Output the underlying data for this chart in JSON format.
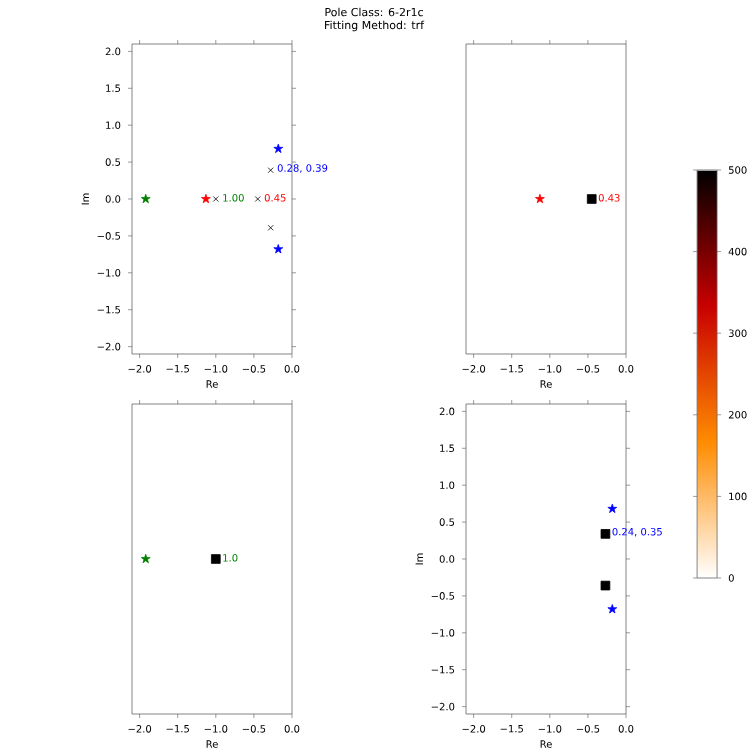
{
  "chart_data": [
    {
      "type": "scatter",
      "xlabel": "Re",
      "ylabel": "Im",
      "xlim": [
        -2.1,
        0
      ],
      "ylim": [
        -2.1,
        2.1
      ],
      "xticks": [
        {
          "value": -2,
          "label": "−2.0"
        },
        {
          "value": -1.5,
          "label": "−1.5"
        },
        {
          "value": -1,
          "label": "−1.0"
        },
        {
          "value": -0.5,
          "label": "−0.5"
        },
        {
          "value": 0,
          "label": "0.0"
        }
      ],
      "yticks": [
        {
          "value": -2,
          "label": "−2.0"
        },
        {
          "value": -1.5,
          "label": "−1.5"
        },
        {
          "value": -1,
          "label": "−1.0"
        },
        {
          "value": -0.5,
          "label": "−0.5"
        },
        {
          "value": 0,
          "label": "0.0"
        },
        {
          "value": 0.5,
          "label": "0.5"
        },
        {
          "value": 1,
          "label": "1.0"
        },
        {
          "value": 1.5,
          "label": "1.5"
        },
        {
          "value": 2,
          "label": "2.0"
        }
      ],
      "series": [
        {
          "x": [
            -1.92
          ],
          "values": [
            0
          ],
          "color": "#008000",
          "marker": "star"
        },
        {
          "x": [
            -1.13
          ],
          "values": [
            0
          ],
          "color": "#ff0000",
          "marker": "star"
        },
        {
          "x": [
            -0.18,
            -0.18
          ],
          "values": [
            0.68,
            -0.68
          ],
          "color": "#0000ff",
          "marker": "star"
        },
        {
          "x": [
            -1.0,
            -0.45,
            -0.28,
            -0.28
          ],
          "values": [
            0,
            0,
            0.39,
            -0.39
          ],
          "color": "#000000",
          "marker": "cross"
        }
      ],
      "annotations": [
        {
          "text": "1.00",
          "x": -1.0,
          "y": 0
        },
        {
          "text": "0.45",
          "x": -0.45,
          "y": 0
        },
        {
          "text": "0.28, 0.39",
          "x": -0.28,
          "y": 0.39
        }
      ]
    },
    {
      "type": "scatter",
      "title": "Pole Class: 6-2r1c",
      "subtitle": "Fitting Method: trf",
      "xlabel": "Re",
      "xlim": [
        -2.1,
        0
      ],
      "ylim": [
        -2.1,
        2.1
      ],
      "tick_labels": "x",
      "xticks": [
        {
          "value": -2,
          "label": "−2.0"
        },
        {
          "value": -1.5,
          "label": "−1.5"
        },
        {
          "value": -1,
          "label": "−1.0"
        },
        {
          "value": -0.5,
          "label": "−0.5"
        },
        {
          "value": 0,
          "label": "0.0"
        }
      ],
      "clim": [
        0,
        500
      ],
      "cticks": [
        0,
        100,
        200,
        300,
        400,
        500
      ],
      "series": [
        {
          "x": [
            -1.13
          ],
          "values": [
            0
          ],
          "color": "#ff0000",
          "marker": "star"
        },
        {
          "x": [
            -0.45
          ],
          "values": [
            0
          ],
          "cvalues": [
            500
          ],
          "marker": "square"
        }
      ],
      "annotations": [
        {
          "text": "0.43",
          "x": -0.45,
          "y": 0
        }
      ]
    },
    {
      "type": "scatter",
      "xlabel": "Re",
      "xlim": [
        -2.1,
        0
      ],
      "ylim": [
        -2.1,
        2.1
      ],
      "tick_labels": "x",
      "xticks": [
        {
          "value": -2,
          "label": "−2.0"
        },
        {
          "value": -1.5,
          "label": "−1.5"
        },
        {
          "value": -1,
          "label": "−1.0"
        },
        {
          "value": -0.5,
          "label": "−0.5"
        },
        {
          "value": 0,
          "label": "0.0"
        }
      ],
      "series": [
        {
          "x": [
            -1.92
          ],
          "values": [
            0
          ],
          "color": "#008000",
          "marker": "star"
        },
        {
          "x": [
            -1.0
          ],
          "values": [
            0
          ],
          "color": "#000000",
          "marker": "square"
        }
      ],
      "annotations": [
        {
          "text": "1.0",
          "x": -1.0,
          "y": 0
        }
      ]
    },
    {
      "type": "scatter",
      "xlabel": "Re",
      "ylabel": "Im",
      "xlim": [
        -2.1,
        0
      ],
      "ylim": [
        -2.1,
        2.1
      ],
      "xticks": [
        {
          "value": -2,
          "label": "−2.0"
        },
        {
          "value": -1.5,
          "label": "−1.5"
        },
        {
          "value": -1,
          "label": "−1.0"
        },
        {
          "value": -0.5,
          "label": "−0.5"
        },
        {
          "value": 0,
          "label": "0.0"
        }
      ],
      "yticks": [
        {
          "value": -2,
          "label": "−2.0"
        },
        {
          "value": -1.5,
          "label": "−1.5"
        },
        {
          "value": -1,
          "label": "−1.0"
        },
        {
          "value": -0.5,
          "label": "−0.5"
        },
        {
          "value": 0,
          "label": "0.0"
        },
        {
          "value": 0.5,
          "label": "0.5"
        },
        {
          "value": 1,
          "label": "1.0"
        },
        {
          "value": 1.5,
          "label": "1.5"
        },
        {
          "value": 2,
          "label": "2.0"
        }
      ],
      "series": [
        {
          "x": [
            -0.18,
            -0.18
          ],
          "values": [
            0.68,
            -0.68
          ],
          "color": "#0000ff",
          "marker": "star"
        },
        {
          "x": [
            -0.27,
            -0.27
          ],
          "values": [
            0.34,
            -0.36
          ],
          "color": "#000000",
          "marker": "square"
        }
      ],
      "annotations": [
        {
          "text": "0.24, 0.35",
          "x": -0.27,
          "y": 0.34
        }
      ]
    }
  ]
}
